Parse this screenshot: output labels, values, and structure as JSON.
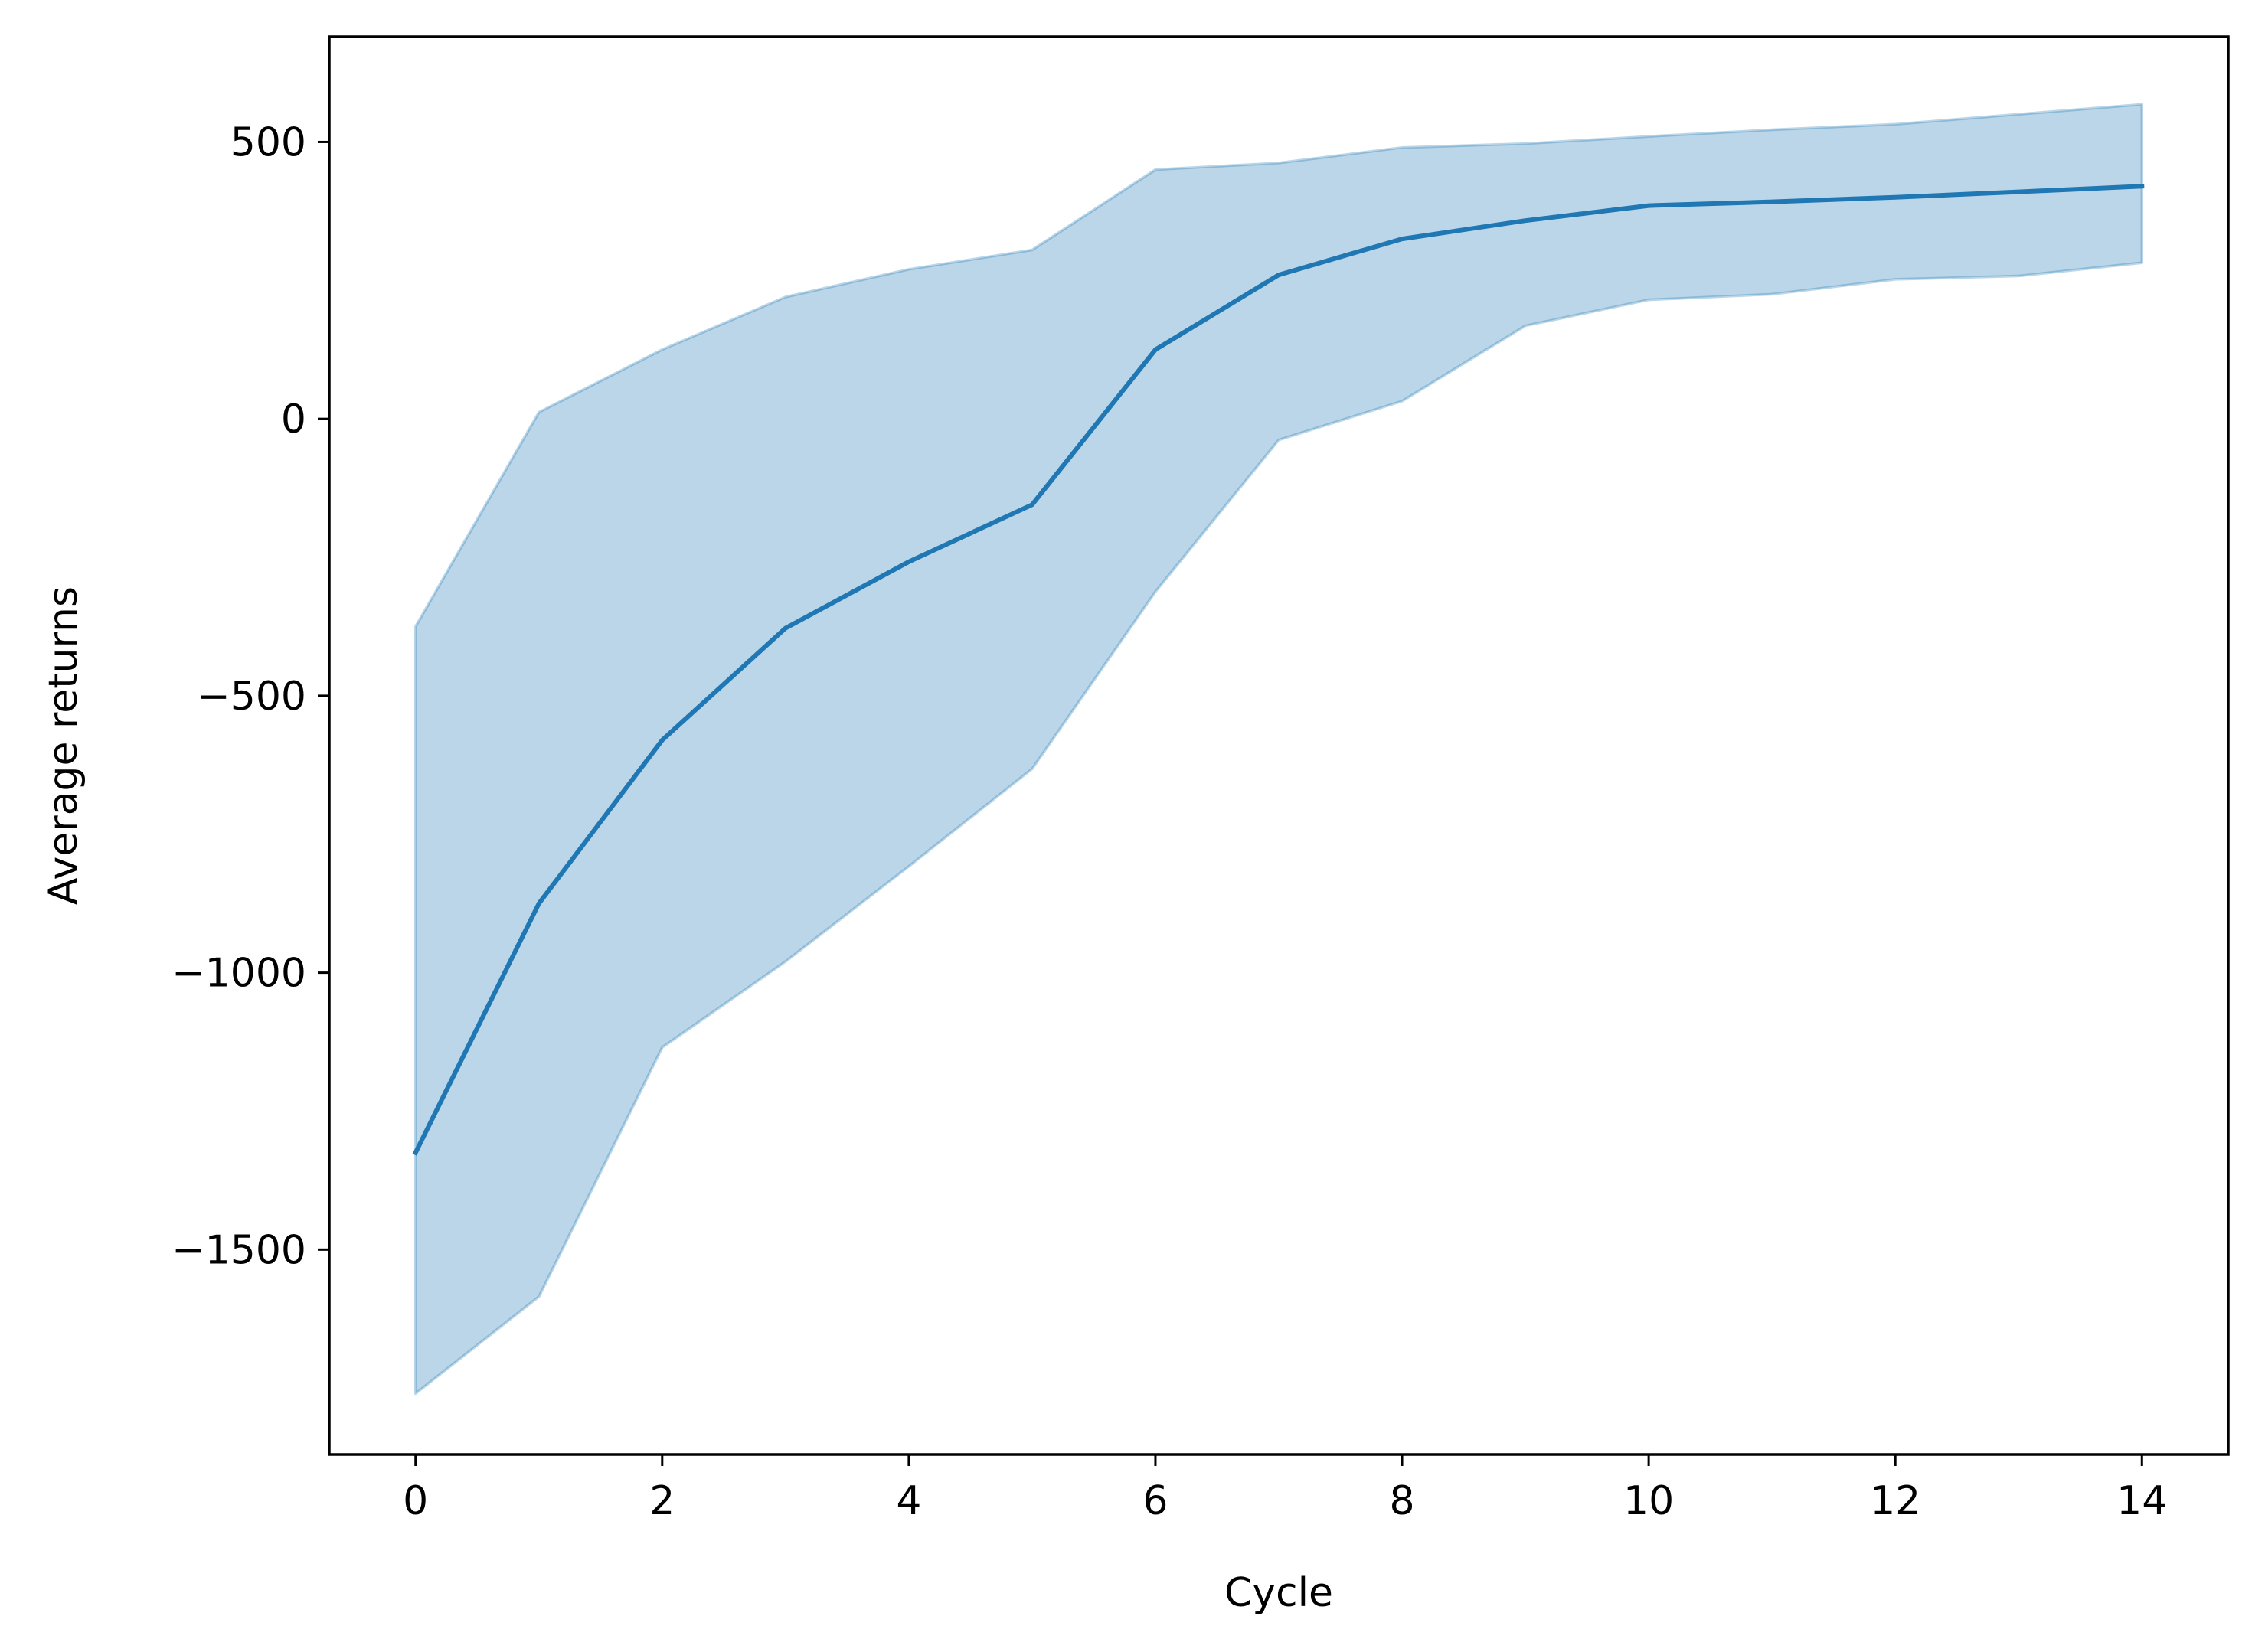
{
  "chart_data": {
    "type": "line",
    "title": "",
    "xlabel": "Cycle",
    "ylabel": "Average returns",
    "xlim": [
      -0.7,
      14.7
    ],
    "ylim": [
      -1870,
      690
    ],
    "grid": false,
    "legend": "none",
    "x_ticks": [
      0,
      2,
      4,
      6,
      8,
      10,
      12,
      14
    ],
    "x_tick_labels": [
      "0",
      "2",
      "4",
      "6",
      "8",
      "10",
      "12",
      "14"
    ],
    "y_ticks": [
      500,
      0,
      -500,
      -1000,
      -1500
    ],
    "y_tick_labels": [
      "500",
      "0",
      "−500",
      "−1000",
      "−1500"
    ],
    "x": [
      0,
      1,
      2,
      3,
      4,
      5,
      6,
      7,
      8,
      9,
      10,
      11,
      12,
      13,
      14
    ],
    "series": [
      {
        "values": [
          -1325,
          -875,
          -580,
          -378,
          -258,
          -155,
          125,
          260,
          325,
          358,
          385,
          392,
          400,
          410,
          420
        ]
      }
    ],
    "band": {
      "upper": [
        -375,
        12,
        125,
        220,
        270,
        305,
        450,
        462,
        490,
        497,
        510,
        522,
        532,
        550,
        568
      ],
      "lower": [
        -1760,
        -1585,
        -1135,
        -980,
        -808,
        -632,
        -312,
        -38,
        32,
        168,
        215,
        225,
        252,
        258,
        282
      ]
    },
    "colors": {
      "line": "#1f77b4",
      "band": "#1f77b4"
    }
  }
}
